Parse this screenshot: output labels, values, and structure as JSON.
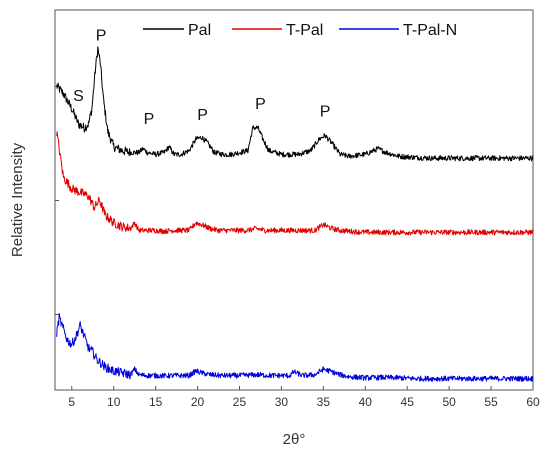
{
  "chart_data": {
    "type": "line",
    "title": "",
    "xlabel": "2θ°",
    "ylabel": "Relative Intensity",
    "xlim": [
      3,
      60
    ],
    "ylim": [
      0,
      100
    ],
    "x_ticks": [
      5,
      10,
      15,
      20,
      25,
      30,
      35,
      40,
      45,
      50,
      55,
      60
    ],
    "y_tick_labels_shown": false,
    "legend_position": "top-right",
    "series": [
      {
        "name": "Pal",
        "color": "#000000",
        "points": [
          [
            3.2,
            80
          ],
          [
            4,
            78
          ],
          [
            5,
            74
          ],
          [
            5.8,
            70
          ],
          [
            6.5,
            69
          ],
          [
            7,
            70
          ],
          [
            7.4,
            74
          ],
          [
            7.8,
            84
          ],
          [
            8.1,
            90
          ],
          [
            8.4,
            86
          ],
          [
            8.8,
            76
          ],
          [
            9.3,
            68
          ],
          [
            10,
            64
          ],
          [
            11,
            63
          ],
          [
            12,
            62.5
          ],
          [
            13,
            62.5
          ],
          [
            13.5,
            63.5
          ],
          [
            14,
            62.5
          ],
          [
            15,
            62
          ],
          [
            16,
            62.5
          ],
          [
            16.6,
            64
          ],
          [
            17.2,
            62
          ],
          [
            18,
            62
          ],
          [
            19,
            63
          ],
          [
            19.8,
            66
          ],
          [
            20.5,
            66.5
          ],
          [
            21.2,
            65
          ],
          [
            22,
            62.5
          ],
          [
            23,
            62
          ],
          [
            24,
            62
          ],
          [
            25,
            62.5
          ],
          [
            26,
            63
          ],
          [
            26.6,
            69
          ],
          [
            27.2,
            69
          ],
          [
            27.8,
            66
          ],
          [
            28.5,
            63
          ],
          [
            30,
            62
          ],
          [
            32,
            62
          ],
          [
            33.5,
            63
          ],
          [
            34.5,
            66
          ],
          [
            35.2,
            67
          ],
          [
            36,
            65
          ],
          [
            37,
            62
          ],
          [
            38,
            61.5
          ],
          [
            40,
            62
          ],
          [
            41.5,
            63.5
          ],
          [
            42.5,
            62.5
          ],
          [
            44,
            61.5
          ],
          [
            46,
            61.2
          ],
          [
            48,
            61
          ],
          [
            50,
            61
          ],
          [
            52,
            61
          ],
          [
            54,
            61
          ],
          [
            56,
            61
          ],
          [
            58,
            61
          ],
          [
            60,
            61
          ]
        ]
      },
      {
        "name": "T-Pal",
        "color": "#e00000",
        "points": [
          [
            3.2,
            68
          ],
          [
            4,
            56
          ],
          [
            5,
            53
          ],
          [
            6,
            52
          ],
          [
            7,
            51
          ],
          [
            7.7,
            48
          ],
          [
            8.3,
            50
          ],
          [
            9,
            46
          ],
          [
            10,
            44
          ],
          [
            11,
            43
          ],
          [
            12,
            42.5
          ],
          [
            12.5,
            44
          ],
          [
            13,
            42
          ],
          [
            14,
            42
          ],
          [
            15,
            42
          ],
          [
            16,
            41.8
          ],
          [
            17,
            42
          ],
          [
            18,
            42
          ],
          [
            19,
            42
          ],
          [
            19.8,
            44
          ],
          [
            20.5,
            43.5
          ],
          [
            21.5,
            42.5
          ],
          [
            22.5,
            42
          ],
          [
            24,
            42
          ],
          [
            25,
            42
          ],
          [
            26,
            42
          ],
          [
            27,
            42.5
          ],
          [
            28,
            42
          ],
          [
            30,
            42
          ],
          [
            32,
            42
          ],
          [
            34,
            42
          ],
          [
            35,
            43.5
          ],
          [
            36,
            42.5
          ],
          [
            37,
            42
          ],
          [
            38,
            41.8
          ],
          [
            40,
            41.5
          ],
          [
            42,
            41.5
          ],
          [
            44,
            41.5
          ],
          [
            46,
            41.5
          ],
          [
            48,
            41.5
          ],
          [
            50,
            41.5
          ],
          [
            52,
            41.5
          ],
          [
            54,
            41.5
          ],
          [
            56,
            41.5
          ],
          [
            58,
            41.5
          ],
          [
            60,
            41.5
          ]
        ]
      },
      {
        "name": "T-Pal-N",
        "color": "#0000dd",
        "points": [
          [
            3.2,
            15
          ],
          [
            3.5,
            19
          ],
          [
            4,
            16
          ],
          [
            4.5,
            13
          ],
          [
            5,
            12
          ],
          [
            5.5,
            14
          ],
          [
            6,
            17
          ],
          [
            6.5,
            14
          ],
          [
            7,
            11
          ],
          [
            7.5,
            10
          ],
          [
            8,
            8
          ],
          [
            9,
            6
          ],
          [
            10,
            5
          ],
          [
            11,
            4.5
          ],
          [
            12,
            4
          ],
          [
            12.5,
            5.5
          ],
          [
            13,
            4
          ],
          [
            14,
            3.8
          ],
          [
            15,
            3.8
          ],
          [
            16,
            3.7
          ],
          [
            17,
            3.8
          ],
          [
            18,
            3.8
          ],
          [
            19,
            3.8
          ],
          [
            19.8,
            5
          ],
          [
            20.5,
            4.5
          ],
          [
            21.5,
            4
          ],
          [
            23,
            3.8
          ],
          [
            25,
            3.8
          ],
          [
            27,
            4
          ],
          [
            29,
            3.8
          ],
          [
            31,
            3.8
          ],
          [
            31.5,
            4.8
          ],
          [
            32.5,
            3.8
          ],
          [
            34,
            4
          ],
          [
            35,
            5.5
          ],
          [
            36,
            4.8
          ],
          [
            37,
            4
          ],
          [
            38,
            3.5
          ],
          [
            40,
            3.2
          ],
          [
            42,
            3.3
          ],
          [
            44,
            3.2
          ],
          [
            46,
            3
          ],
          [
            48,
            3
          ],
          [
            50,
            3
          ],
          [
            52,
            3
          ],
          [
            54,
            3
          ],
          [
            56,
            3
          ],
          [
            58,
            3
          ],
          [
            60,
            3
          ]
        ]
      }
    ],
    "annotations": [
      {
        "text": "S",
        "x": 5.8,
        "y": 76
      },
      {
        "text": "P",
        "x": 8.5,
        "y": 92
      },
      {
        "text": "P",
        "x": 14.2,
        "y": 70
      },
      {
        "text": "P",
        "x": 20.6,
        "y": 71
      },
      {
        "text": "P",
        "x": 27.5,
        "y": 74
      },
      {
        "text": "P",
        "x": 35.2,
        "y": 72
      }
    ]
  }
}
